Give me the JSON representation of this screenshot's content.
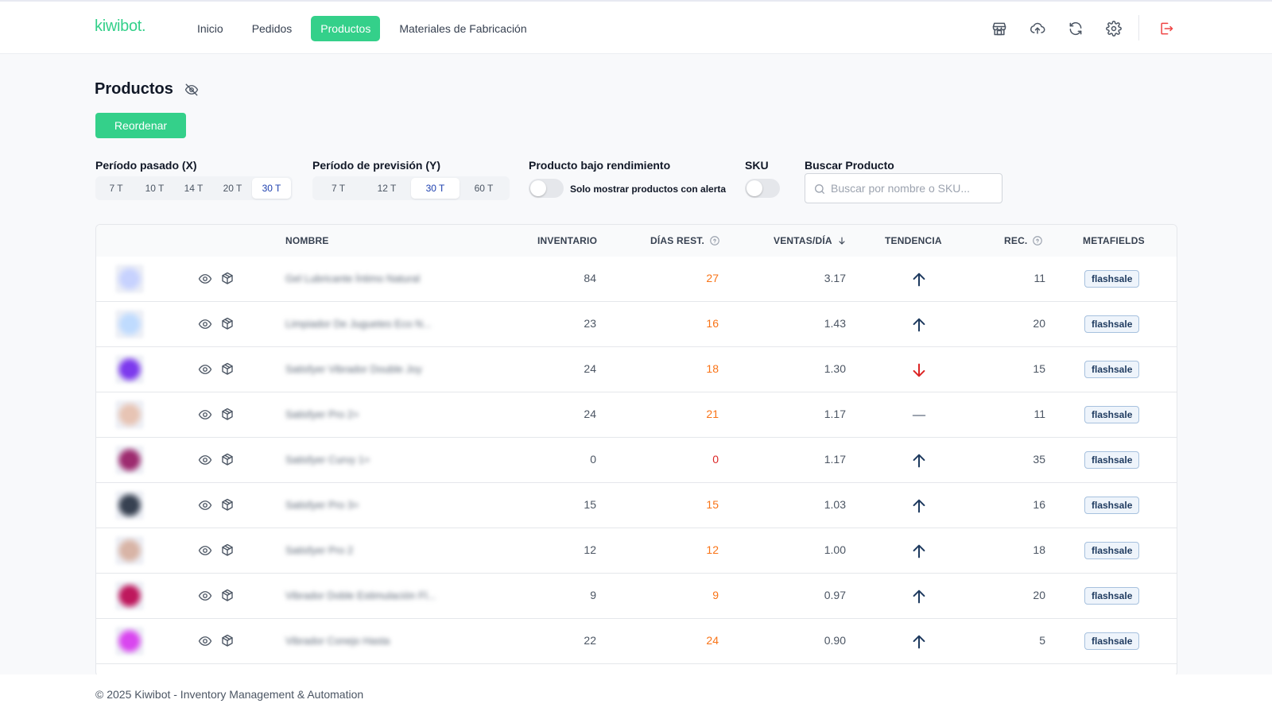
{
  "header": {
    "logo": "kiwibot.",
    "nav": [
      {
        "label": "Inicio"
      },
      {
        "label": "Pedidos"
      },
      {
        "label": "Productos",
        "active": true
      },
      {
        "label": "Materiales de Fabricación"
      }
    ],
    "icons": [
      "store-icon",
      "cloud-upload-icon",
      "refresh-icon",
      "gear-icon",
      "logout-icon"
    ]
  },
  "page": {
    "title": "Productos",
    "reorder_label": "Reordenar"
  },
  "filters": {
    "past_label": "Período pasado (X)",
    "past_options": [
      "7 T",
      "10 T",
      "14 T",
      "20 T",
      "30 T"
    ],
    "past_selected": "30 T",
    "forecast_label": "Período de previsión (Y)",
    "forecast_options": [
      "7 T",
      "12 T",
      "30 T",
      "60 T"
    ],
    "forecast_selected": "30 T",
    "low_perf_label": "Producto bajo rendimiento",
    "low_perf_toggle_text": "Solo mostrar productos con alerta",
    "sku_label": "SKU",
    "search_label": "Buscar Producto",
    "search_placeholder": "Buscar por nombre o SKU..."
  },
  "table": {
    "columns": {
      "name": "NOMBRE",
      "inventory": "INVENTARIO",
      "days": "DÍAS REST.",
      "sales": "VENTAS/DÍA",
      "trend": "TENDENCIA",
      "rec": "REC.",
      "metafields": "METAFIELDS"
    },
    "rows": [
      {
        "name": "Gel Lubricante Íntimo Natural",
        "inventory": "84",
        "days": "27",
        "days_color": "#f97316",
        "sales": "3.17",
        "trend": "up",
        "rec": "11",
        "metafield": "flashsale",
        "thumb": "#c7d2fe"
      },
      {
        "name": "Limpiador De Juguetes Eco N...",
        "inventory": "23",
        "days": "16",
        "days_color": "#f97316",
        "sales": "1.43",
        "trend": "up",
        "rec": "20",
        "metafield": "flashsale",
        "thumb": "#bfdbfe"
      },
      {
        "name": "Satisfyer Vibrador Double Joy",
        "inventory": "24",
        "days": "18",
        "days_color": "#f97316",
        "sales": "1.30",
        "trend": "down",
        "rec": "15",
        "metafield": "flashsale",
        "thumb": "#7c3aed"
      },
      {
        "name": "Satisfyer Pro 2+",
        "inventory": "24",
        "days": "21",
        "days_color": "#f97316",
        "sales": "1.17",
        "trend": "flat",
        "rec": "11",
        "metafield": "flashsale",
        "thumb": "#e7c4b4"
      },
      {
        "name": "Satisfyer Curvy 1+",
        "inventory": "0",
        "days": "0",
        "days_color": "#dc2626",
        "sales": "1.17",
        "trend": "up",
        "rec": "35",
        "metafield": "flashsale",
        "thumb": "#9d2b6f"
      },
      {
        "name": "Satisfyer Pro 3+",
        "inventory": "15",
        "days": "15",
        "days_color": "#f97316",
        "sales": "1.03",
        "trend": "up",
        "rec": "16",
        "metafield": "flashsale",
        "thumb": "#374151"
      },
      {
        "name": "Satisfyer Pro 2",
        "inventory": "12",
        "days": "12",
        "days_color": "#f97316",
        "sales": "1.00",
        "trend": "up",
        "rec": "18",
        "metafield": "flashsale",
        "thumb": "#d8b4a6"
      },
      {
        "name": "Vibrador Doble Estimulación Fl...",
        "inventory": "9",
        "days": "9",
        "days_color": "#f97316",
        "sales": "0.97",
        "trend": "up",
        "rec": "20",
        "metafield": "flashsale",
        "thumb": "#be185d"
      },
      {
        "name": "Vibrador Conejo Hasta",
        "inventory": "22",
        "days": "24",
        "days_color": "#f97316",
        "sales": "0.90",
        "trend": "up",
        "rec": "5",
        "metafield": "flashsale",
        "thumb": "#d946ef"
      }
    ]
  },
  "footer": {
    "text": "© 2025 Kiwibot - Inventory Management & Automation"
  },
  "colors": {
    "accent": "#34d08a",
    "trend_up": "#1e3a5f",
    "trend_down": "#dc2626",
    "trend_flat": "#9ca3af"
  }
}
